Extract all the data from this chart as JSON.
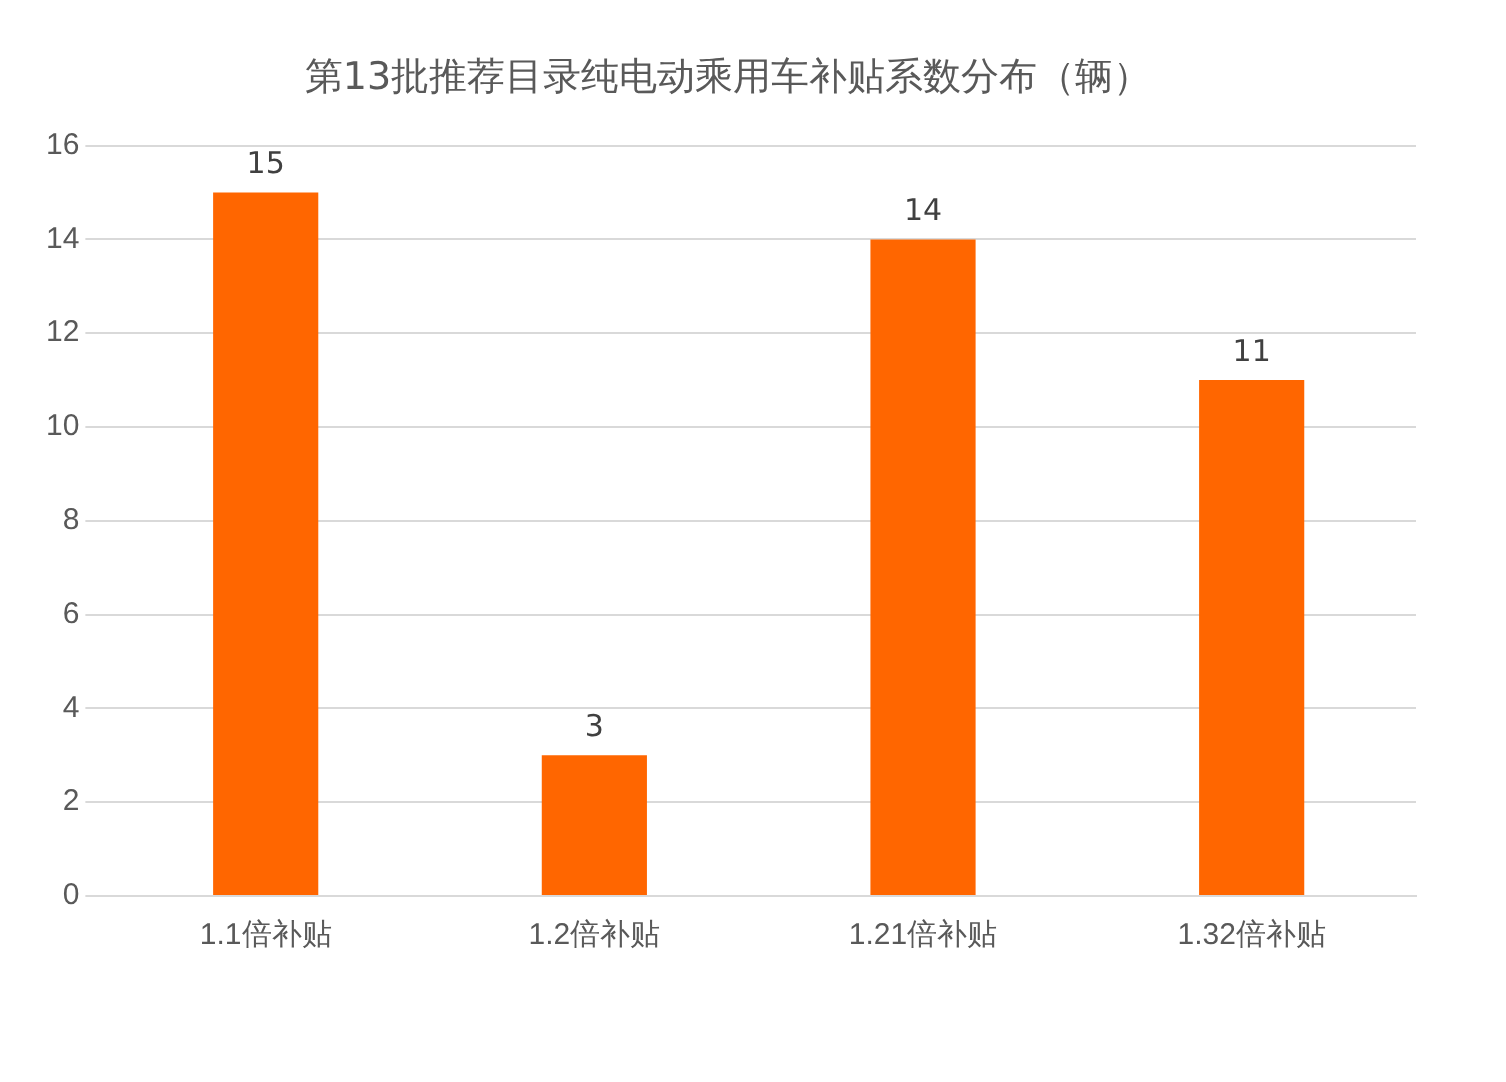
{
  "chart_data": {
    "type": "bar",
    "title": "第13批推荐目录纯电动乘用车补贴系数分布（辆）",
    "categories": [
      "1.1倍补贴",
      "1.2倍补贴",
      "1.21倍补贴",
      "1.32倍补贴"
    ],
    "values": [
      15,
      3,
      14,
      11
    ],
    "color": "#ff6600",
    "ylim": [
      0,
      16
    ],
    "yticks": [
      0,
      2,
      4,
      6,
      8,
      10,
      12,
      14,
      16
    ],
    "grid": "y",
    "data_labels": true,
    "legend": false
  }
}
